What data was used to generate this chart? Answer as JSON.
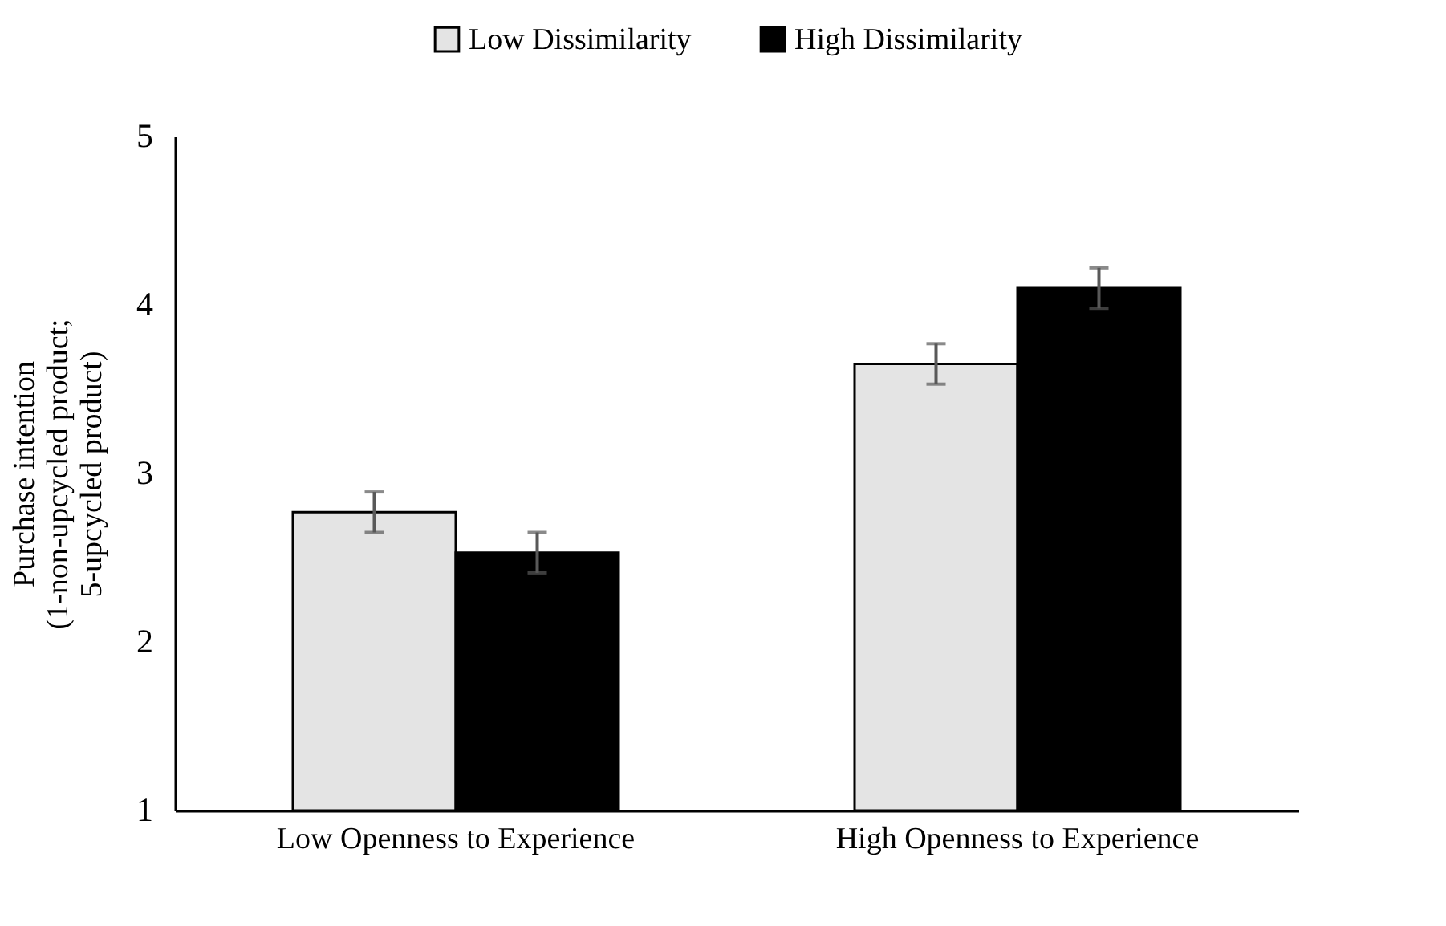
{
  "chart_data": {
    "type": "bar",
    "ylabel": "Purchase intention\n(1-non-upcycled product;\n5-upcycled product)",
    "categories": [
      "Low Openness to Experience",
      "High Openness to Experience"
    ],
    "series": [
      {
        "name": "Low Dissimilarity",
        "color": "#e4e4e4",
        "values": [
          2.77,
          3.65
        ],
        "errors": [
          0.12,
          0.12
        ]
      },
      {
        "name": "High Dissimilarity",
        "color": "#000000",
        "values": [
          2.53,
          4.1
        ],
        "errors": [
          0.12,
          0.12
        ]
      }
    ],
    "ylim": [
      1,
      5
    ],
    "yticks": [
      1,
      2,
      3,
      4,
      5
    ],
    "grid": false,
    "legend": "top"
  }
}
